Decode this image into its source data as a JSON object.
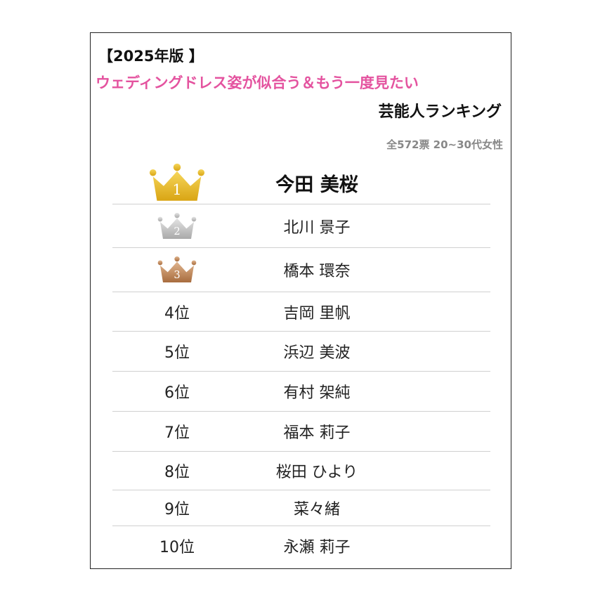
{
  "header": {
    "year_label": "【2025年版 】",
    "title_line1": "ウェディングドレス姿が似合う＆もう一度見たい",
    "title_line2": "芸能人ランキング",
    "note": "全572票 20~30代女性"
  },
  "ranking": {
    "rows": [
      {
        "rank": "1",
        "name": "今田 美桜"
      },
      {
        "rank": "2",
        "name": "北川 景子"
      },
      {
        "rank": "3",
        "name": "橋本 環奈"
      },
      {
        "rank": "4位",
        "name": "吉岡 里帆"
      },
      {
        "rank": "5位",
        "name": "浜辺 美波"
      },
      {
        "rank": "6位",
        "name": "有村 架純"
      },
      {
        "rank": "7位",
        "name": "福本 莉子"
      },
      {
        "rank": "8位",
        "name": "桜田 ひより"
      },
      {
        "rank": "9位",
        "name": "菜々緒"
      },
      {
        "rank": "10位",
        "name": "永瀬 莉子"
      }
    ]
  }
}
